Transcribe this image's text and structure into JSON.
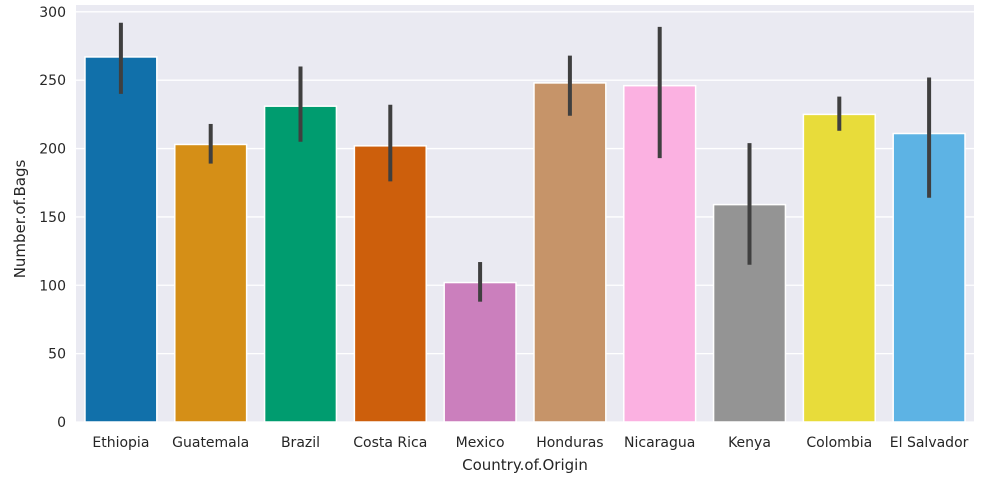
{
  "chart_data": {
    "type": "bar",
    "title": "",
    "xlabel": "Country.of.Origin",
    "ylabel": "Number.of.Bags",
    "ylim": [
      0,
      305
    ],
    "yticks": [
      0,
      50,
      100,
      150,
      200,
      250,
      300
    ],
    "grid": true,
    "legend": "none",
    "categories": [
      "Ethiopia",
      "Guatemala",
      "Brazil",
      "Costa Rica",
      "Mexico",
      "Honduras",
      "Nicaragua",
      "Kenya",
      "Colombia",
      "El Salvador"
    ],
    "values": [
      267,
      203,
      231,
      202,
      102,
      248,
      246,
      159,
      225,
      211
    ],
    "ci_low": [
      240,
      189,
      205,
      176,
      88,
      224,
      193,
      115,
      213,
      164
    ],
    "ci_high": [
      292,
      218,
      260,
      232,
      117,
      268,
      289,
      204,
      238,
      252
    ],
    "colors": [
      "#1170aa",
      "#d58f17",
      "#009c6f",
      "#cd5f0c",
      "#cb7fbd",
      "#c69469",
      "#fbb1e1",
      "#949494",
      "#e8dc3a",
      "#5db3e4"
    ],
    "background_color": "#eaeaf2"
  }
}
